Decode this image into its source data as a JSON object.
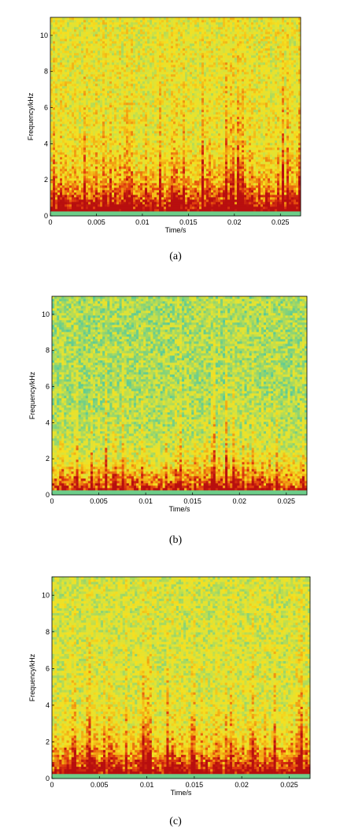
{
  "chart_data": [
    {
      "type": "heatmap",
      "caption": "(a)",
      "xlabel": "Time/s",
      "ylabel": "Frequency/kHz",
      "xlim": [
        0,
        0.0272
      ],
      "ylim": [
        0,
        11
      ],
      "xticks": [
        0,
        0.005,
        0.01,
        0.015,
        0.02,
        0.025
      ],
      "xtick_labels": [
        "0",
        "0.005",
        "0.01",
        "0.015",
        "0.02",
        "0.025"
      ],
      "yticks": [
        0,
        2,
        4,
        6,
        8,
        10
      ],
      "ytick_labels": [
        "0",
        "2",
        "4",
        "6",
        "8",
        "10"
      ],
      "grid": false,
      "colormap": [
        "#1fb5c6",
        "#4fc9a0",
        "#9ad66a",
        "#dbe33a",
        "#f5e020",
        "#f2a012",
        "#e2400e",
        "#b80f0f"
      ],
      "noise_level": 0.48,
      "seed": 17
    },
    {
      "type": "heatmap",
      "caption": "(b)",
      "xlabel": "Time/s",
      "ylabel": "Frequency/kHz",
      "xlim": [
        0,
        0.0272
      ],
      "ylim": [
        0,
        11
      ],
      "xticks": [
        0,
        0.005,
        0.01,
        0.015,
        0.02,
        0.025
      ],
      "xtick_labels": [
        "0",
        "0.005",
        "0.01",
        "0.015",
        "0.02",
        "0.025"
      ],
      "yticks": [
        0,
        2,
        4,
        6,
        8,
        10
      ],
      "ytick_labels": [
        "0",
        "2",
        "4",
        "6",
        "8",
        "10"
      ],
      "grid": false,
      "colormap": [
        "#1fb5c6",
        "#4fc9a0",
        "#9ad66a",
        "#dbe33a",
        "#f5e020",
        "#f2a012",
        "#e2400e",
        "#b80f0f"
      ],
      "noise_level": 0.32,
      "seed": 53
    },
    {
      "type": "heatmap",
      "caption": "(c)",
      "xlabel": "Time/s",
      "ylabel": "Frequency/kHz",
      "xlim": [
        0,
        0.0272
      ],
      "ylim": [
        0,
        11
      ],
      "xticks": [
        0,
        0.005,
        0.01,
        0.015,
        0.02,
        0.025
      ],
      "xtick_labels": [
        "0",
        "0.005",
        "0.01",
        "0.015",
        "0.02",
        "0.025"
      ],
      "yticks": [
        0,
        2,
        4,
        6,
        8,
        10
      ],
      "ytick_labels": [
        "0",
        "2",
        "4",
        "6",
        "8",
        "10"
      ],
      "grid": false,
      "colormap": [
        "#1fb5c6",
        "#4fc9a0",
        "#9ad66a",
        "#dbe33a",
        "#f5e020",
        "#f2a012",
        "#e2400e",
        "#b80f0f"
      ],
      "noise_level": 0.42,
      "seed": 91
    }
  ]
}
